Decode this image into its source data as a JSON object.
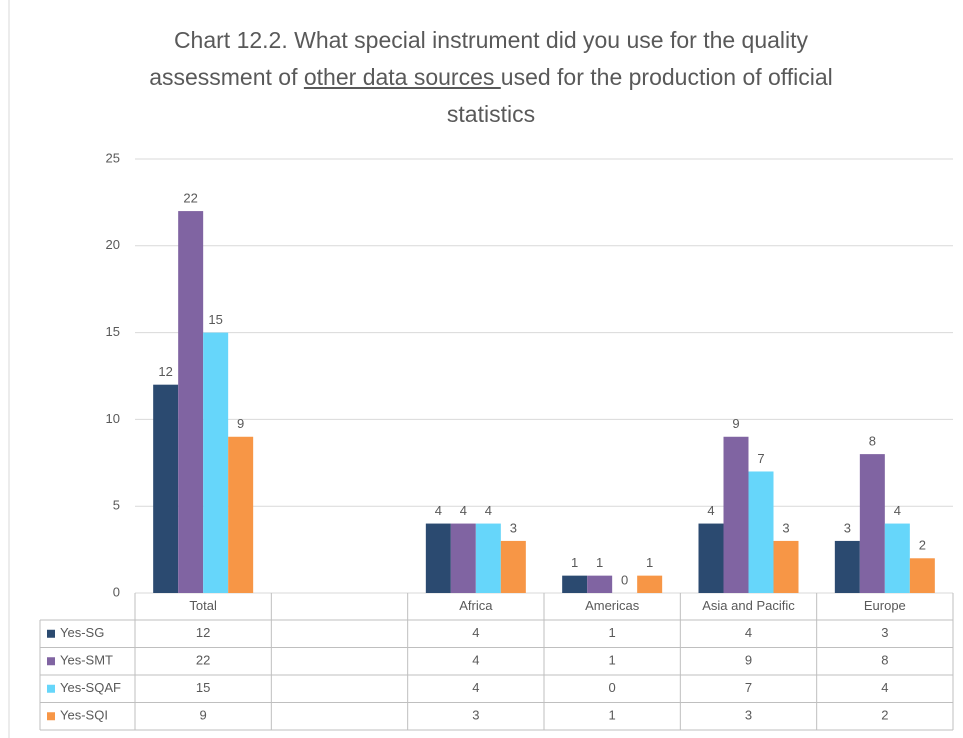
{
  "chart_data": {
    "type": "bar",
    "title": [
      "Chart 12.2. What special instrument did you use for the quality assessment of ",
      "other data sources ",
      "used for the production of official statistics"
    ],
    "title_underlined_part": 1,
    "categories": [
      "Total",
      null,
      "Africa",
      "Americas",
      "Asia and Pacific",
      "Europe"
    ],
    "series": [
      {
        "name": "Yes-SG",
        "color": "#2b4a70",
        "values": [
          12,
          null,
          4,
          1,
          4,
          3
        ]
      },
      {
        "name": "Yes-SMT",
        "color": "#8064a2",
        "values": [
          22,
          null,
          4,
          1,
          9,
          8
        ]
      },
      {
        "name": "Yes-SQAF",
        "color": "#66d6fa",
        "values": [
          15,
          null,
          4,
          0,
          7,
          4
        ]
      },
      {
        "name": "Yes-SQI",
        "color": "#f79646",
        "values": [
          9,
          null,
          3,
          1,
          3,
          2
        ]
      }
    ],
    "ylim": [
      0,
      25
    ],
    "yticks": [
      0,
      5,
      10,
      15,
      20,
      25
    ],
    "grid": true,
    "data_labels": true,
    "data_table": true
  }
}
